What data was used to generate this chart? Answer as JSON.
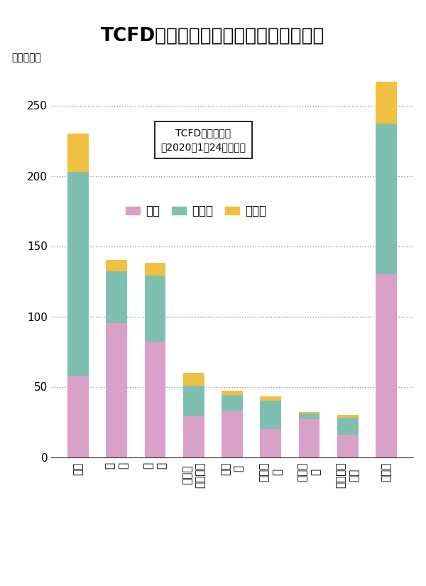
{
  "title": "TCFD賛同機関は日本が世界で最も多い",
  "ylabel": "（機関数）",
  "annotation_text": "TCFD賛同企業数\n（2020年1月24日時点）",
  "categories": [
    "日本",
    "米\n国",
    "英\n国",
    "オース\nトラリア",
    "カナ\nダ",
    "フラン\nス",
    "オラン\nダ",
    "スウェー\nデン",
    "その他"
  ],
  "kinyu": [
    58,
    95,
    82,
    29,
    33,
    20,
    27,
    16,
    130
  ],
  "hikinyu": [
    145,
    37,
    47,
    22,
    11,
    20,
    4,
    12,
    107
  ],
  "sonota": [
    27,
    8,
    9,
    9,
    3,
    3,
    1,
    2,
    30
  ],
  "color_kinyu": "#d9a0c8",
  "color_hikinyu": "#7fbfb0",
  "color_sonota": "#f0c040",
  "background_color": "#ffffff",
  "ylim": [
    0,
    275
  ],
  "yticks": [
    0,
    50,
    100,
    150,
    200,
    250
  ],
  "legend_labels": [
    "金融",
    "非金融",
    "その他"
  ],
  "bar_width": 0.55,
  "grid_color": "#999999",
  "title_fontsize": 19,
  "ylabel_fontsize": 10,
  "tick_fontsize": 11,
  "legend_fontsize": 12
}
